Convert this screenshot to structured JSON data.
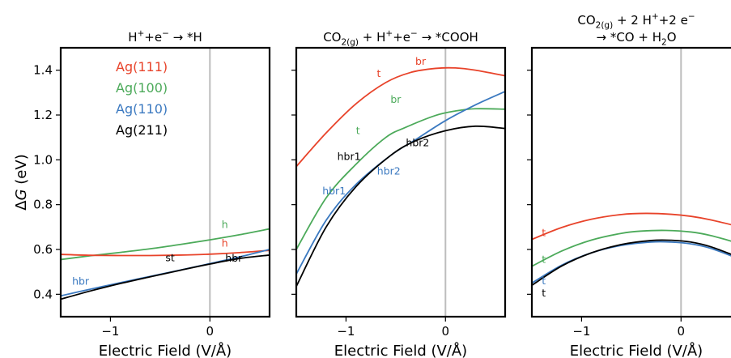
{
  "chart_data": [
    {
      "type": "line",
      "title_parts": [
        "H",
        "+",
        "+e",
        "−",
        " → *H"
      ],
      "xlabel": "Electric Field (V/Å)",
      "ylabel_parts": [
        "Δ",
        "G",
        " (eV)"
      ],
      "xlim": [
        -1.5,
        0.6
      ],
      "ylim": [
        0.3,
        1.5
      ],
      "x_ticks": [
        {
          "v": -1,
          "label": "−1"
        },
        {
          "v": 0,
          "label": "0"
        }
      ],
      "y_ticks": [
        {
          "v": 0.4,
          "label": "0.4"
        },
        {
          "v": 0.6,
          "label": "0.6"
        },
        {
          "v": 0.8,
          "label": "0.8"
        },
        {
          "v": 1.0,
          "label": "1.0"
        },
        {
          "v": 1.2,
          "label": "1.2"
        },
        {
          "v": 1.4,
          "label": "1.4"
        }
      ],
      "vline_x": 0,
      "legend": {
        "placement": "upper-left",
        "entries": [
          {
            "label": "Ag(111)",
            "color": "#e8432a"
          },
          {
            "label": "Ag(100)",
            "color": "#4caa5a"
          },
          {
            "label": "Ag(110)",
            "color": "#3b79c0"
          },
          {
            "label": "Ag(211)",
            "color": "#000000"
          }
        ]
      },
      "series": [
        {
          "color": "#4caa5a",
          "x": [
            -1.5,
            -1.2,
            -0.9,
            -0.6,
            -0.3,
            0.0,
            0.3,
            0.6
          ],
          "y": [
            0.555,
            0.572,
            0.587,
            0.603,
            0.622,
            0.643,
            0.666,
            0.692
          ]
        },
        {
          "color": "#e8432a",
          "x": [
            -1.5,
            -1.2,
            -0.9,
            -0.6,
            -0.3,
            0.0,
            0.3,
            0.6
          ],
          "y": [
            0.578,
            0.574,
            0.573,
            0.573,
            0.575,
            0.579,
            0.586,
            0.596
          ]
        },
        {
          "color": "#3b79c0",
          "x": [
            -1.5,
            -1.2,
            -0.9,
            -0.6,
            -0.3,
            0.0,
            0.3,
            0.6
          ],
          "y": [
            0.393,
            0.423,
            0.452,
            0.48,
            0.508,
            0.537,
            0.567,
            0.6
          ]
        },
        {
          "color": "#000000",
          "x": [
            -1.5,
            -1.2,
            -0.9,
            -0.6,
            -0.3,
            0.0,
            0.3,
            0.6
          ],
          "y": [
            0.378,
            0.415,
            0.448,
            0.478,
            0.507,
            0.535,
            0.56,
            0.575
          ]
        }
      ],
      "annotations": [
        {
          "text": "h",
          "color": "#4caa5a",
          "x": 0.15,
          "y": 0.695
        },
        {
          "text": "h",
          "color": "#e8432a",
          "x": 0.15,
          "y": 0.612
        },
        {
          "text": "st",
          "color": "#000000",
          "x": -0.4,
          "y": 0.548
        },
        {
          "text": "hbr",
          "color": "#000000",
          "x": 0.24,
          "y": 0.545
        },
        {
          "text": "hbr",
          "color": "#3b79c0",
          "x": -1.3,
          "y": 0.442
        }
      ]
    },
    {
      "type": "line",
      "title_parts": [
        "CO",
        "2(g)",
        " + H",
        "+",
        "+e",
        "−",
        " → *COOH"
      ],
      "xlabel": "Electric Field (V/Å)",
      "xlim": [
        -1.5,
        0.6
      ],
      "ylim": [
        0.3,
        1.5
      ],
      "x_ticks": [
        {
          "v": -1,
          "label": "−1"
        },
        {
          "v": 0,
          "label": "0"
        }
      ],
      "vline_x": 0,
      "series": [
        {
          "color": "#e8432a",
          "x": [
            -1.5,
            -1.2,
            -0.9,
            -0.6,
            -0.35,
            -0.1,
            0.1,
            0.3,
            0.6
          ],
          "y": [
            0.97,
            1.12,
            1.25,
            1.345,
            1.39,
            1.408,
            1.41,
            1.4,
            1.375
          ]
        },
        {
          "color": "#4caa5a",
          "x": [
            -1.5,
            -1.2,
            -0.9,
            -0.6,
            -0.4,
            -0.1,
            0.1,
            0.3,
            0.6
          ],
          "y": [
            0.6,
            0.83,
            0.98,
            1.1,
            1.145,
            1.198,
            1.218,
            1.228,
            1.226
          ]
        },
        {
          "color": "#3b79c0",
          "x": [
            -1.5,
            -1.2,
            -0.9,
            -0.55,
            -0.3,
            0.0,
            0.3,
            0.6
          ],
          "y": [
            0.49,
            0.73,
            0.89,
            1.02,
            1.09,
            1.175,
            1.245,
            1.305
          ]
        },
        {
          "color": "#000000",
          "x": [
            -1.5,
            -1.2,
            -0.9,
            -0.55,
            -0.3,
            0.0,
            0.3,
            0.6
          ],
          "y": [
            0.435,
            0.7,
            0.88,
            1.02,
            1.085,
            1.13,
            1.15,
            1.14
          ]
        }
      ],
      "annotations": [
        {
          "text": "br",
          "color": "#e8432a",
          "x": -0.25,
          "y": 1.425
        },
        {
          "text": "t",
          "color": "#e8432a",
          "x": -0.67,
          "y": 1.37
        },
        {
          "text": "br",
          "color": "#4caa5a",
          "x": -0.5,
          "y": 1.255
        },
        {
          "text": "t",
          "color": "#4caa5a",
          "x": -0.88,
          "y": 1.115
        },
        {
          "text": "hbr1",
          "color": "#000000",
          "x": -0.97,
          "y": 1.0
        },
        {
          "text": "hbr2",
          "color": "#000000",
          "x": -0.28,
          "y": 1.06
        },
        {
          "text": "hbr2",
          "color": "#3b79c0",
          "x": -0.57,
          "y": 0.935
        },
        {
          "text": "hbr1",
          "color": "#3b79c0",
          "x": -1.12,
          "y": 0.845
        }
      ]
    },
    {
      "type": "line",
      "title_parts": [
        "CO",
        "2(g)",
        " + 2 H",
        "+",
        "+2 e",
        "−"
      ],
      "title_line2_parts": [
        "→ *CO + H",
        "2",
        "O"
      ],
      "xlabel": "Electric Field (V/Å)",
      "xlim": [
        -1.5,
        0.6
      ],
      "ylim": [
        0.3,
        1.5
      ],
      "x_ticks": [
        {
          "v": -1,
          "label": "−1"
        },
        {
          "v": 0,
          "label": "0"
        }
      ],
      "vline_x": 0,
      "series": [
        {
          "color": "#e8432a",
          "x": [
            -1.5,
            -1.2,
            -0.9,
            -0.6,
            -0.35,
            -0.1,
            0.1,
            0.3,
            0.6
          ],
          "y": [
            0.645,
            0.698,
            0.735,
            0.756,
            0.761,
            0.757,
            0.748,
            0.732,
            0.7
          ]
        },
        {
          "color": "#4caa5a",
          "x": [
            -1.5,
            -1.2,
            -0.9,
            -0.6,
            -0.4,
            -0.15,
            0.1,
            0.3,
            0.6
          ],
          "y": [
            0.525,
            0.593,
            0.642,
            0.672,
            0.682,
            0.685,
            0.678,
            0.662,
            0.625
          ]
        },
        {
          "color": "#3b79c0",
          "x": [
            -1.5,
            -1.2,
            -0.9,
            -0.6,
            -0.3,
            -0.1,
            0.1,
            0.3,
            0.6
          ],
          "y": [
            0.45,
            0.53,
            0.585,
            0.618,
            0.633,
            0.633,
            0.625,
            0.605,
            0.555
          ]
        },
        {
          "color": "#000000",
          "x": [
            -1.5,
            -1.2,
            -0.9,
            -0.6,
            -0.3,
            -0.1,
            0.1,
            0.3,
            0.6
          ],
          "y": [
            0.44,
            0.526,
            0.585,
            0.622,
            0.64,
            0.641,
            0.633,
            0.612,
            0.562
          ]
        }
      ],
      "annotations": [
        {
          "text": "t",
          "color": "#e8432a",
          "x": -1.38,
          "y": 0.66
        },
        {
          "text": "t",
          "color": "#4caa5a",
          "x": -1.38,
          "y": 0.54
        },
        {
          "text": "t",
          "color": "#3b79c0",
          "x": -1.38,
          "y": 0.445
        },
        {
          "text": "t",
          "color": "#000000",
          "x": -1.38,
          "y": 0.39
        }
      ]
    }
  ]
}
